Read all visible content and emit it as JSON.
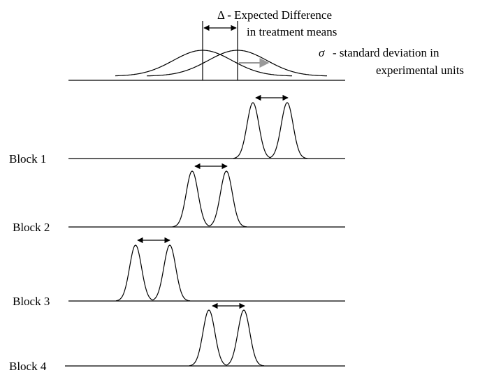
{
  "delta_label_line1": "Δ - Expected Difference",
  "delta_label_line2": "in treatment means",
  "sigma_symbol": "σ",
  "sigma_label_line1": "- standard deviation in",
  "sigma_label_line2": "experimental units",
  "blocks": [
    {
      "label": "Block 1"
    },
    {
      "label": "Block 2"
    },
    {
      "label": "Block 3"
    },
    {
      "label": "Block 4"
    }
  ],
  "colors": {
    "stroke": "#000000",
    "sigma_arrow": "#999999"
  }
}
